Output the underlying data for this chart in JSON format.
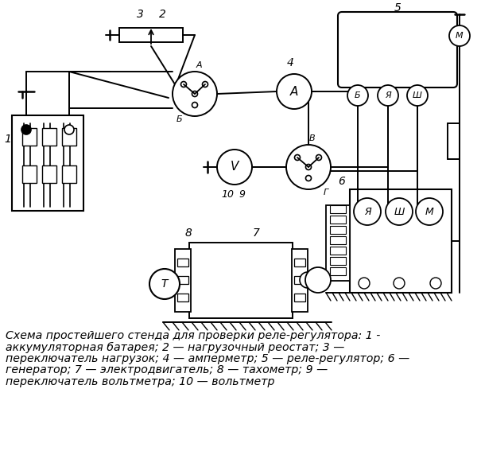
{
  "caption_lines": [
    "Схема простейшего стенда для проверки реле-регулятора: 1 -",
    "аккумуляторная батарея; 2 — нагрузочный реостат; 3 —",
    "переключатель нагрузок; 4 — амперметр; 5 — реле-регулятор; 6 —",
    "генератор; 7 — электродвигатель; 8 — тахометр; 9 —",
    "переключатель вольтметра; 10 — вольтметр"
  ],
  "bg_color": "#ffffff",
  "caption_fontsize": 10.2
}
